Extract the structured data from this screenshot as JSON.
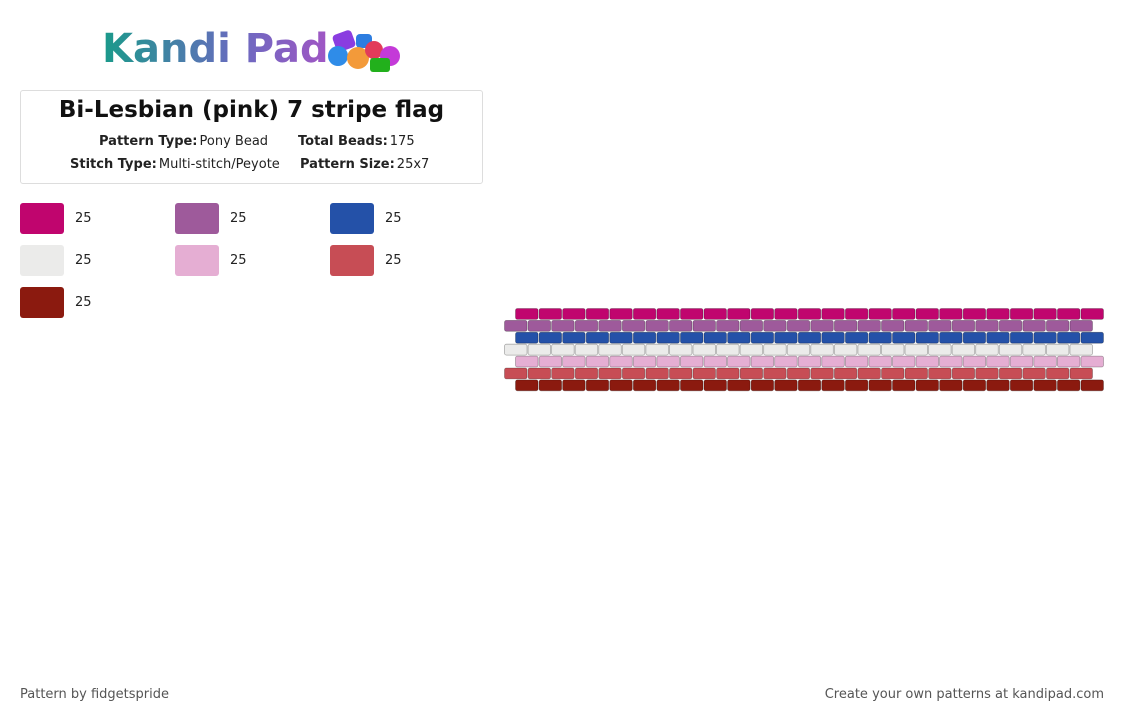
{
  "logo": "Kandi Pad",
  "title": "Bi-Lesbian (pink) 7 stripe flag",
  "details": [
    {
      "label": "Pattern Type:",
      "value": "Pony Bead"
    },
    {
      "label": "Total Beads:",
      "value": "175"
    },
    {
      "label": "Stitch Type:",
      "value": "Multi-stitch/Peyote"
    },
    {
      "label": "Pattern Size:",
      "value": "25x7"
    }
  ],
  "palette": [
    {
      "color": "#c0056e",
      "count": 25
    },
    {
      "color": "#9e5a9b",
      "count": 25
    },
    {
      "color": "#2451a8",
      "count": 25
    },
    {
      "color": "#ebebea",
      "count": 25
    },
    {
      "color": "#e5aed3",
      "count": 25
    },
    {
      "color": "#c74d55",
      "count": 25
    },
    {
      "color": "#8b1a0f",
      "count": 25
    }
  ],
  "footer": {
    "credit": "Pattern by fidgetspride",
    "site": "Create your own patterns at kandipad.com"
  }
}
